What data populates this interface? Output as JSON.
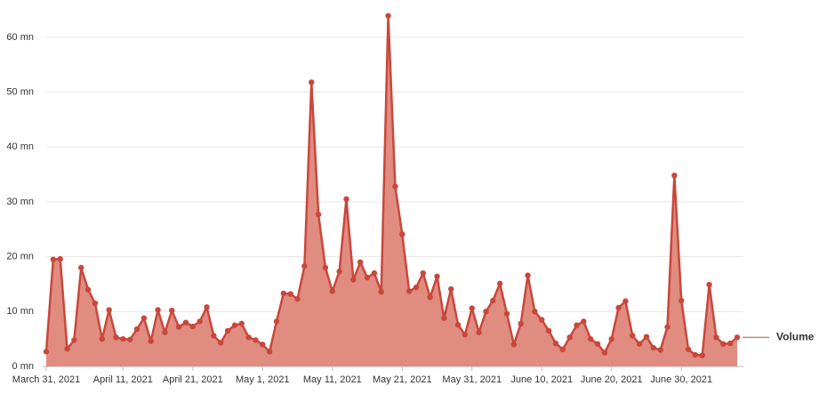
{
  "chart_data": {
    "type": "area",
    "x": [
      "2021-03-31",
      "2021-04-01",
      "2021-04-02",
      "2021-04-03",
      "2021-04-04",
      "2021-04-05",
      "2021-04-06",
      "2021-04-07",
      "2021-04-08",
      "2021-04-09",
      "2021-04-10",
      "2021-04-11",
      "2021-04-12",
      "2021-04-13",
      "2021-04-14",
      "2021-04-15",
      "2021-04-16",
      "2021-04-17",
      "2021-04-18",
      "2021-04-19",
      "2021-04-20",
      "2021-04-21",
      "2021-04-22",
      "2021-04-23",
      "2021-04-24",
      "2021-04-25",
      "2021-04-26",
      "2021-04-27",
      "2021-04-28",
      "2021-04-29",
      "2021-04-30",
      "2021-05-01",
      "2021-05-02",
      "2021-05-03",
      "2021-05-04",
      "2021-05-05",
      "2021-05-06",
      "2021-05-07",
      "2021-05-08",
      "2021-05-09",
      "2021-05-10",
      "2021-05-11",
      "2021-05-12",
      "2021-05-13",
      "2021-05-14",
      "2021-05-15",
      "2021-05-16",
      "2021-05-17",
      "2021-05-18",
      "2021-05-19",
      "2021-05-20",
      "2021-05-21",
      "2021-05-22",
      "2021-05-23",
      "2021-05-24",
      "2021-05-25",
      "2021-05-26",
      "2021-05-27",
      "2021-05-28",
      "2021-05-29",
      "2021-05-30",
      "2021-05-31",
      "2021-06-01",
      "2021-06-02",
      "2021-06-03",
      "2021-06-04",
      "2021-06-05",
      "2021-06-06",
      "2021-06-07",
      "2021-06-08",
      "2021-06-09",
      "2021-06-10",
      "2021-06-11",
      "2021-06-12",
      "2021-06-13",
      "2021-06-14",
      "2021-06-15",
      "2021-06-16",
      "2021-06-17",
      "2021-06-18",
      "2021-06-19",
      "2021-06-20",
      "2021-06-21",
      "2021-06-22",
      "2021-06-23",
      "2021-06-24",
      "2021-06-25",
      "2021-06-26",
      "2021-06-27",
      "2021-06-28",
      "2021-06-29",
      "2021-06-30",
      "2021-07-01",
      "2021-07-02",
      "2021-07-03",
      "2021-07-04",
      "2021-07-05",
      "2021-07-06",
      "2021-07-07",
      "2021-07-08"
    ],
    "series": [
      {
        "name": "Volume",
        "color": "#c9473b",
        "fill": "#df867a",
        "values": [
          2.7,
          19.5,
          19.6,
          3.2,
          4.8,
          18,
          14,
          11.5,
          5,
          10.3,
          5.3,
          5,
          4.9,
          6.8,
          8.8,
          4.6,
          10.3,
          6.2,
          10.2,
          7.2,
          8,
          7.3,
          8.2,
          10.8,
          5.6,
          4.3,
          6.5,
          7.5,
          7.8,
          5.3,
          4.8,
          4,
          2.7,
          8.2,
          13.3,
          13.2,
          12.3,
          18.3,
          51.8,
          27.7,
          18,
          13.7,
          17.3,
          30.5,
          15.8,
          19,
          16.2,
          17,
          13.6,
          63.9,
          32.8,
          24.1,
          13.7,
          14.4,
          17,
          12.6,
          16.4,
          8.8,
          14.1,
          7.6,
          5.8,
          10.6,
          6.2,
          10,
          12,
          15.1,
          9.6,
          4,
          7.8,
          16.6,
          10,
          8.5,
          6.5,
          4.2,
          3.1,
          5.3,
          7.5,
          8.2,
          5,
          4.1,
          2.5,
          5,
          10.7,
          11.9,
          5.6,
          4.1,
          5.4,
          3.4,
          3,
          7.2,
          34.8,
          12,
          3.1,
          2.1,
          2,
          14.9,
          5.3,
          4.1,
          4.2,
          5.3
        ]
      }
    ],
    "xlim": [
      "2021-03-31",
      "2021-07-08"
    ],
    "xticks": [
      {
        "value": "2021-03-31",
        "label": "March 31, 2021"
      },
      {
        "value": "2021-04-11",
        "label": "April 11, 2021"
      },
      {
        "value": "2021-04-21",
        "label": "April 21, 2021"
      },
      {
        "value": "2021-05-01",
        "label": "May 1, 2021"
      },
      {
        "value": "2021-05-11",
        "label": "May 11, 2021"
      },
      {
        "value": "2021-05-21",
        "label": "May 21, 2021"
      },
      {
        "value": "2021-05-31",
        "label": "May 31, 2021"
      },
      {
        "value": "2021-06-10",
        "label": "June 10, 2021"
      },
      {
        "value": "2021-06-20",
        "label": "June 20, 2021"
      },
      {
        "value": "2021-06-30",
        "label": "June 30, 2021"
      }
    ],
    "ylim": [
      0,
      65
    ],
    "yticks": [
      {
        "value": 0,
        "label": "0 mn"
      },
      {
        "value": 10,
        "label": "10 mn"
      },
      {
        "value": 20,
        "label": "20 mn"
      },
      {
        "value": 30,
        "label": "30 mn"
      },
      {
        "value": 40,
        "label": "40 mn"
      },
      {
        "value": 50,
        "label": "50 mn"
      },
      {
        "value": 60,
        "label": "60 mn"
      }
    ],
    "grid": true
  }
}
